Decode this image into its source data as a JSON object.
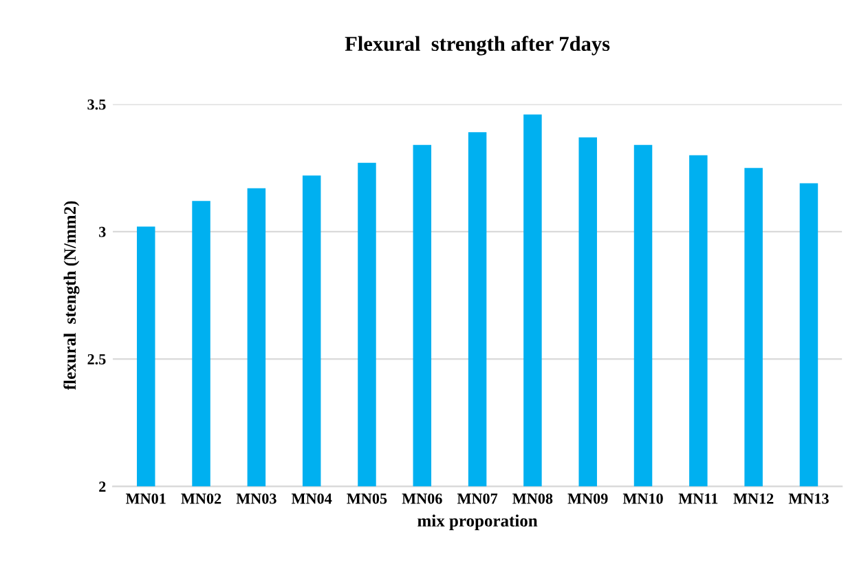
{
  "chart_data": {
    "type": "bar",
    "title": "Flexural  strength after 7days",
    "xlabel": "mix proporation",
    "ylabel": "flexural  stength (N/mm2)",
    "categories": [
      "MN01",
      "MN02",
      "MN03",
      "MN04",
      "MN05",
      "MN06",
      "MN07",
      "MN08",
      "MN09",
      "MN10",
      "MN11",
      "MN12",
      "MN13"
    ],
    "values": [
      3.02,
      3.12,
      3.17,
      3.22,
      3.27,
      3.34,
      3.39,
      3.46,
      3.37,
      3.34,
      3.3,
      3.25,
      3.19
    ],
    "color": "#00b0f0",
    "ylim": [
      2,
      3.5
    ],
    "yticks": [
      2,
      2.5,
      3,
      3.5
    ],
    "grid": "y"
  }
}
